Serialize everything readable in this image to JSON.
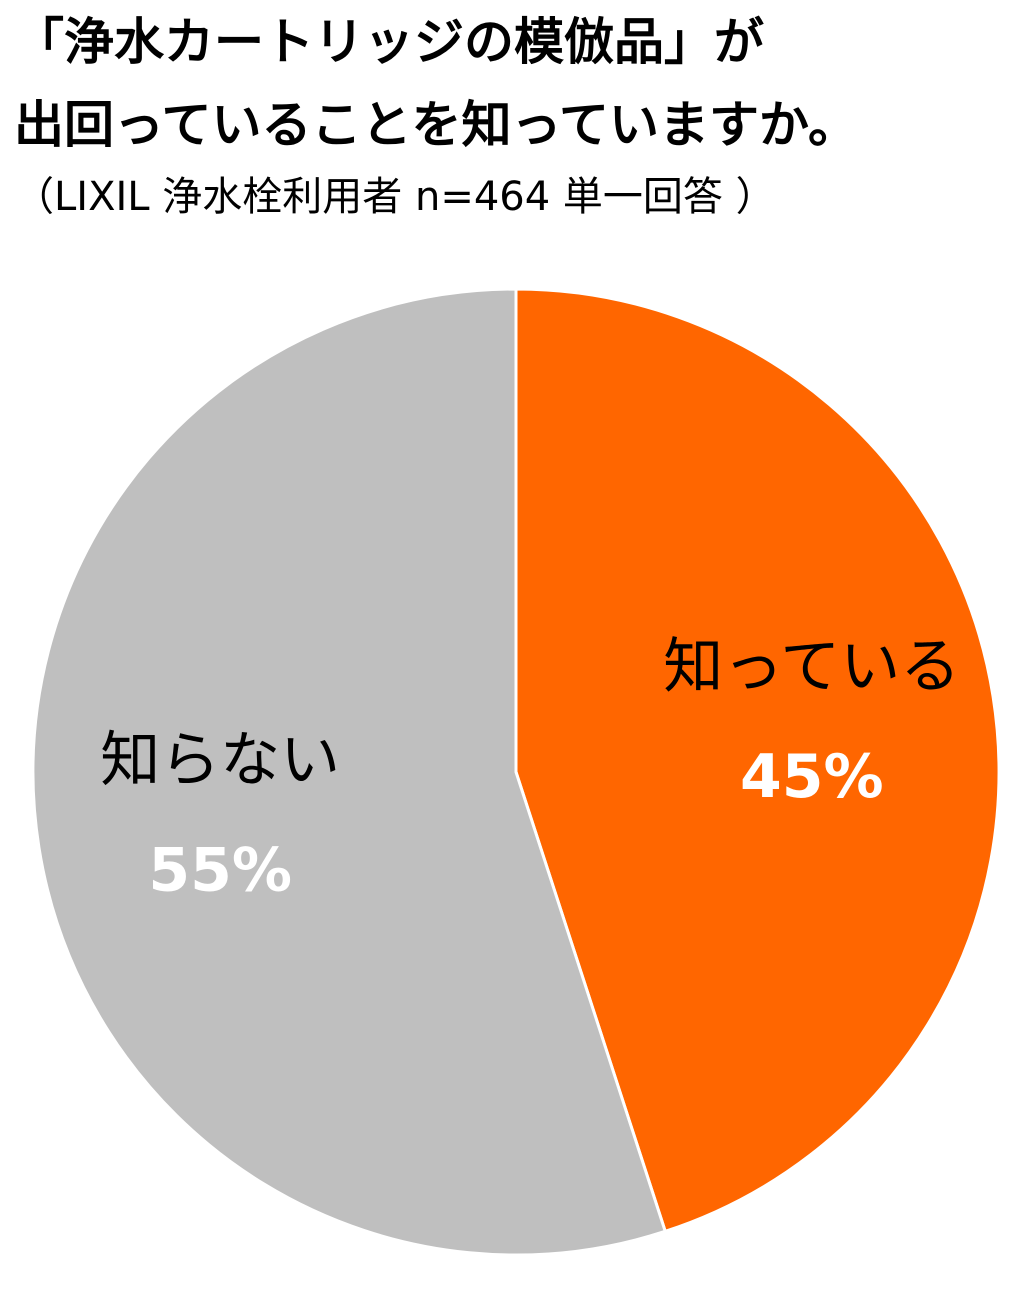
{
  "title_lines": [
    "「浄水カートリッジの模倣品」が",
    "出回っていることを知っていますか。"
  ],
  "subtitle": "（LIXIL 浄水栓利用者 n=464 単一回答 ）",
  "chart_data": {
    "type": "pie",
    "start_angle_deg": 0,
    "direction": "clockwise",
    "slices": [
      {
        "label": "知っている",
        "value": 45,
        "value_label": "45%",
        "color": "#FF6600"
      },
      {
        "label": "知らない",
        "value": 55,
        "value_label": "55%",
        "color": "#BFBFBF"
      }
    ],
    "slice_border_color": "#FFFFFF"
  }
}
